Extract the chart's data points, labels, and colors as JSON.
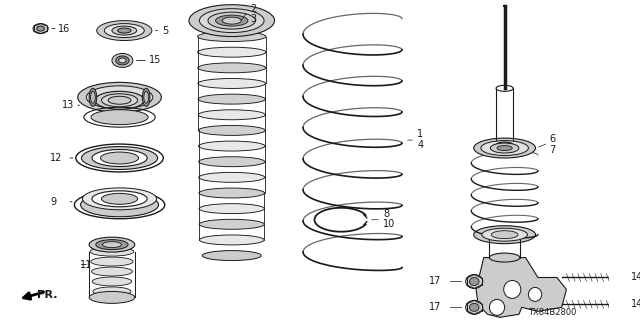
{
  "bg_color": "#ffffff",
  "diagram_code": "TX84B2800",
  "fr_label": "FR.",
  "dark": "#1a1a1a",
  "gray": "#666666",
  "lightgray": "#cccccc",
  "midgray": "#999999"
}
